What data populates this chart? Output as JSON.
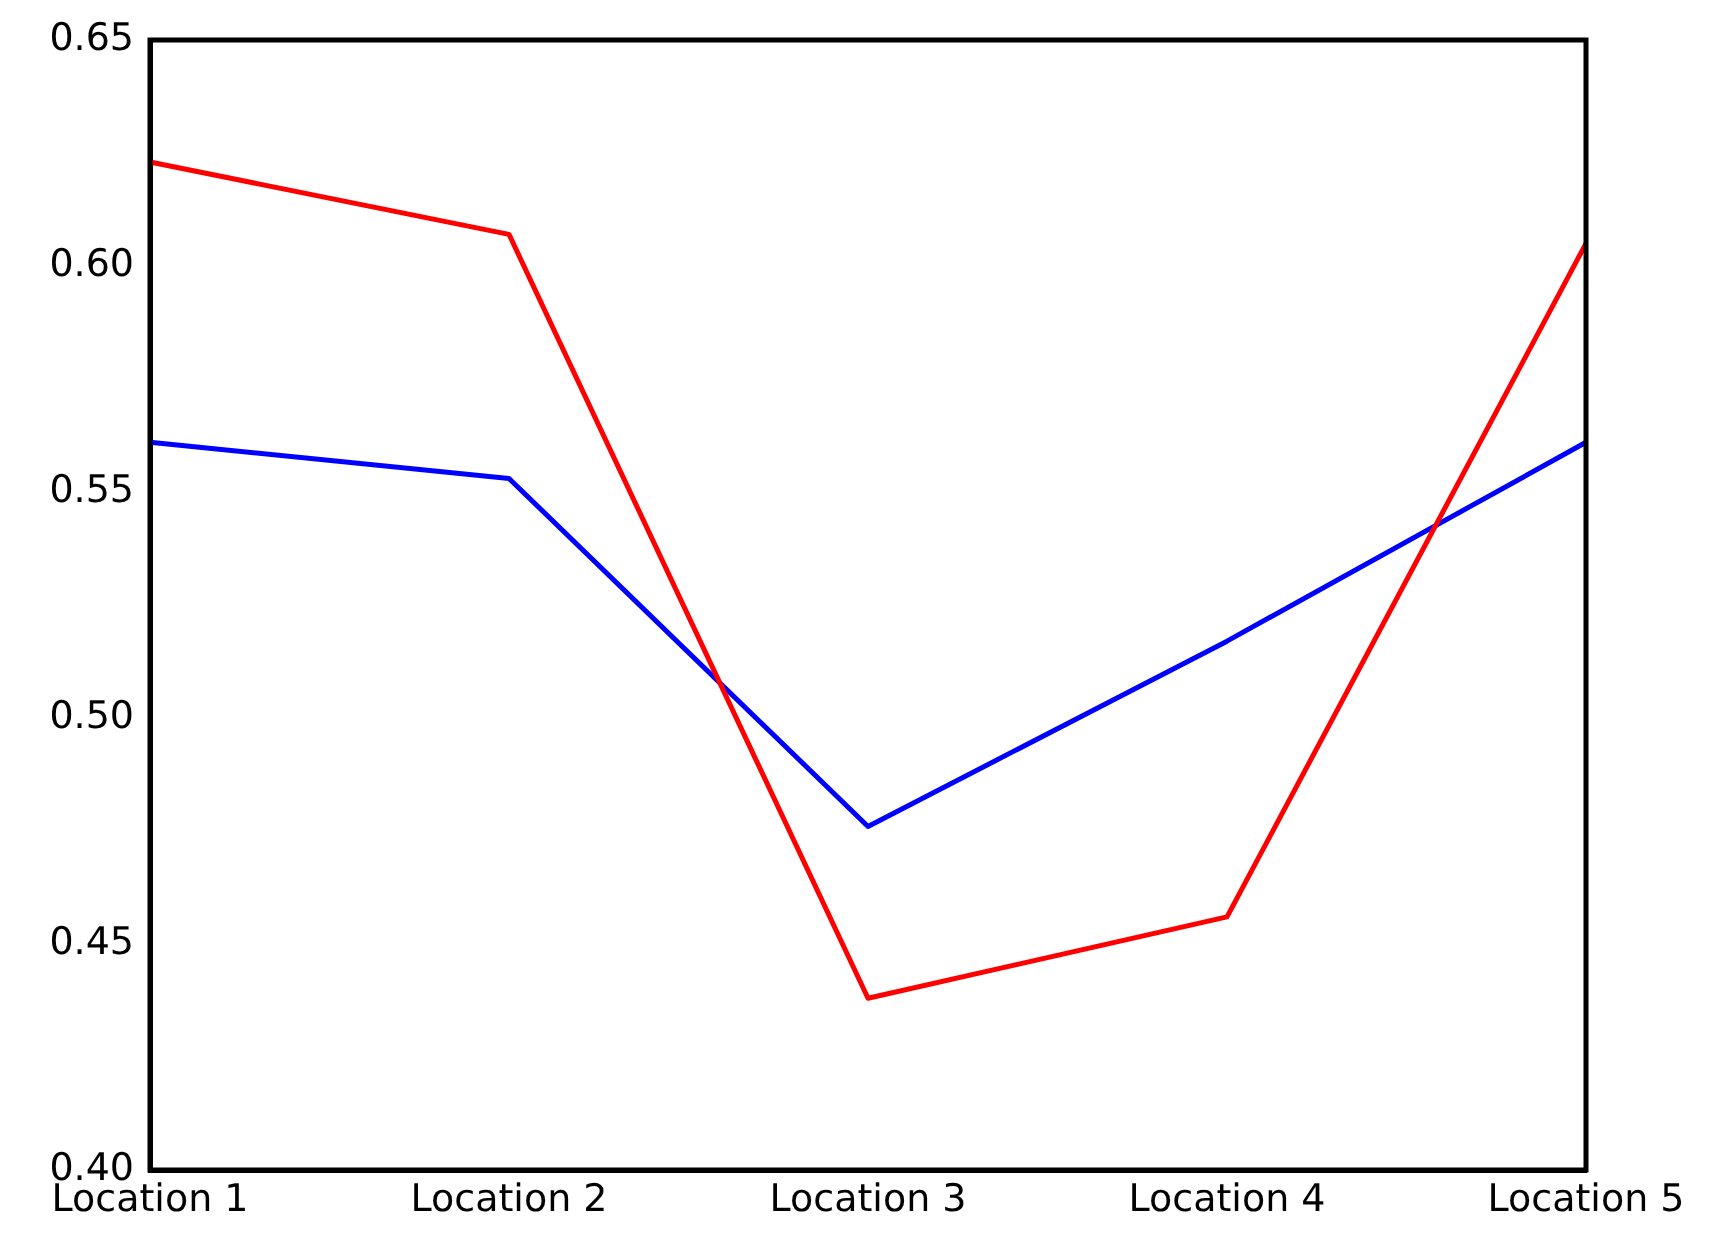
{
  "chart_data": {
    "type": "line",
    "categories": [
      "Location 1",
      "Location 2",
      "Location 3",
      "Location 4",
      "Location 5"
    ],
    "series": [
      {
        "color": "#ff0000",
        "values": [
          0.623,
          0.607,
          0.438,
          0.456,
          0.605
        ]
      },
      {
        "color": "#0000ff",
        "values": [
          0.561,
          0.553,
          0.476,
          0.517,
          0.561
        ]
      }
    ],
    "ylim": [
      0.4,
      0.65
    ],
    "yticks": [
      {
        "value": 0.4,
        "label": "0.40"
      },
      {
        "value": 0.45,
        "label": "0.45"
      },
      {
        "value": 0.5,
        "label": "0.50"
      },
      {
        "value": 0.55,
        "label": "0.55"
      },
      {
        "value": 0.6,
        "label": "0.60"
      },
      {
        "value": 0.65,
        "label": "0.65"
      }
    ],
    "grid": false,
    "legend": false
  }
}
